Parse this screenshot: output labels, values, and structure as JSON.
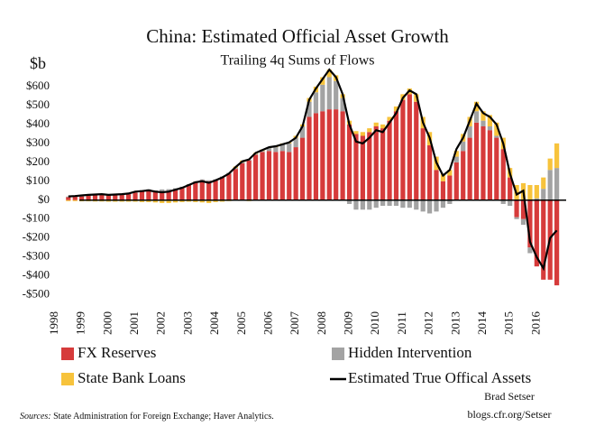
{
  "chart_data": {
    "type": "bar",
    "stacked": true,
    "title": "China: Estimated Official Asset Growth",
    "subtitle": "Trailing 4q Sums of Flows",
    "y_label": "$b",
    "sources_label": "Sources:",
    "sources": "State Administration for Foreign Exchange; Haver Analytics.",
    "author": "Brad Setser",
    "site": "blogs.cfr.org/Setser",
    "x": [
      1998.5,
      1998.75,
      1999,
      1999.25,
      1999.5,
      1999.75,
      2000,
      2000.25,
      2000.5,
      2000.75,
      2001,
      2001.25,
      2001.5,
      2001.75,
      2002,
      2002.25,
      2002.5,
      2002.75,
      2003,
      2003.25,
      2003.5,
      2003.75,
      2004,
      2004.25,
      2004.5,
      2004.75,
      2005,
      2005.25,
      2005.5,
      2005.75,
      2006,
      2006.25,
      2006.5,
      2006.75,
      2007,
      2007.25,
      2007.5,
      2007.75,
      2008,
      2008.25,
      2008.5,
      2008.75,
      2009,
      2009.25,
      2009.5,
      2009.75,
      2010,
      2010.25,
      2010.5,
      2010.75,
      2011,
      2011.25,
      2011.5,
      2011.75,
      2012,
      2012.25,
      2012.5,
      2012.75,
      2013,
      2013.25,
      2013.5,
      2013.75,
      2014,
      2014.25,
      2014.5,
      2014.75,
      2015,
      2015.25,
      2015.5,
      2015.75,
      2016,
      2016.25,
      2016.5,
      2016.75
    ],
    "series": [
      {
        "name": "FX Reserves",
        "color": "#d63b3b",
        "values": [
          16,
          18,
          20,
          24,
          26,
          28,
          25,
          26,
          28,
          32,
          40,
          45,
          50,
          42,
          45,
          48,
          55,
          65,
          80,
          95,
          105,
          100,
          105,
          120,
          140,
          165,
          195,
          210,
          240,
          255,
          260,
          255,
          260,
          255,
          280,
          330,
          440,
          460,
          470,
          480,
          480,
          470,
          400,
          350,
          340,
          360,
          390,
          380,
          420,
          470,
          530,
          560,
          520,
          380,
          290,
          160,
          100,
          130,
          200,
          260,
          330,
          410,
          390,
          370,
          330,
          270,
          120,
          -90,
          -100,
          -250,
          -350,
          -420,
          -420,
          -450
        ]
      },
      {
        "name": "Hidden Intervention",
        "color": "#a3a3a3",
        "values": [
          3,
          3,
          4,
          4,
          5,
          5,
          5,
          6,
          6,
          6,
          6,
          8,
          8,
          10,
          12,
          10,
          8,
          6,
          5,
          5,
          5,
          5,
          5,
          5,
          5,
          5,
          5,
          5,
          5,
          5,
          15,
          25,
          35,
          45,
          50,
          60,
          80,
          110,
          140,
          170,
          150,
          70,
          -20,
          -50,
          -50,
          -50,
          -40,
          -30,
          -30,
          -30,
          -40,
          -40,
          -50,
          -60,
          -70,
          -60,
          -40,
          -20,
          30,
          50,
          60,
          60,
          30,
          20,
          10,
          -20,
          -30,
          -10,
          -30,
          -30,
          10,
          60,
          160,
          170
        ]
      },
      {
        "name": "State Bank Loans",
        "color": "#f7c33c",
        "values": [
          -5,
          -5,
          -6,
          -6,
          -7,
          -7,
          -8,
          -8,
          -8,
          -8,
          -8,
          -10,
          -10,
          -12,
          -15,
          -15,
          -12,
          -10,
          -8,
          -10,
          -12,
          -15,
          -10,
          -8,
          -5,
          8,
          10,
          -5,
          5,
          8,
          5,
          5,
          5,
          5,
          10,
          10,
          20,
          30,
          40,
          40,
          30,
          20,
          20,
          15,
          20,
          20,
          20,
          20,
          20,
          25,
          30,
          30,
          40,
          60,
          70,
          70,
          40,
          30,
          30,
          40,
          50,
          50,
          50,
          60,
          70,
          60,
          50,
          80,
          90,
          80,
          70,
          60,
          60,
          130
        ]
      },
      {
        "name": "Estimated True Offical Assets",
        "type": "line",
        "color": "#000000",
        "values": [
          20,
          22,
          25,
          28,
          30,
          32,
          28,
          30,
          32,
          35,
          45,
          48,
          52,
          45,
          42,
          45,
          55,
          65,
          80,
          95,
          100,
          92,
          105,
          120,
          140,
          175,
          205,
          215,
          250,
          265,
          280,
          285,
          295,
          305,
          330,
          390,
          530,
          590,
          640,
          690,
          650,
          560,
          400,
          310,
          300,
          330,
          370,
          360,
          410,
          460,
          540,
          580,
          560,
          410,
          330,
          200,
          130,
          160,
          270,
          330,
          420,
          510,
          460,
          440,
          400,
          300,
          140,
          30,
          50,
          -220,
          -300,
          -360,
          -200,
          -160
        ]
      }
    ],
    "xlim": [
      1997.9,
      2017.1
    ],
    "xticks": [
      1998,
      1999,
      2000,
      2001,
      2002,
      2003,
      2004,
      2005,
      2006,
      2007,
      2008,
      2009,
      2010,
      2011,
      2012,
      2013,
      2014,
      2015,
      2016
    ],
    "ylim": [
      -540,
      700
    ],
    "yticks": [
      {
        "value": 600,
        "label": "$600"
      },
      {
        "value": 500,
        "label": "$500"
      },
      {
        "value": 400,
        "label": "$400"
      },
      {
        "value": 300,
        "label": "$300"
      },
      {
        "value": 200,
        "label": "$200"
      },
      {
        "value": 100,
        "label": "$100"
      },
      {
        "value": 0,
        "label": "$0"
      },
      {
        "value": -100,
        "label": "-$100"
      },
      {
        "value": -200,
        "label": "-$200"
      },
      {
        "value": -300,
        "label": "-$300"
      },
      {
        "value": -400,
        "label": "-$400"
      },
      {
        "value": -500,
        "label": "-$500"
      }
    ],
    "grid": false
  }
}
